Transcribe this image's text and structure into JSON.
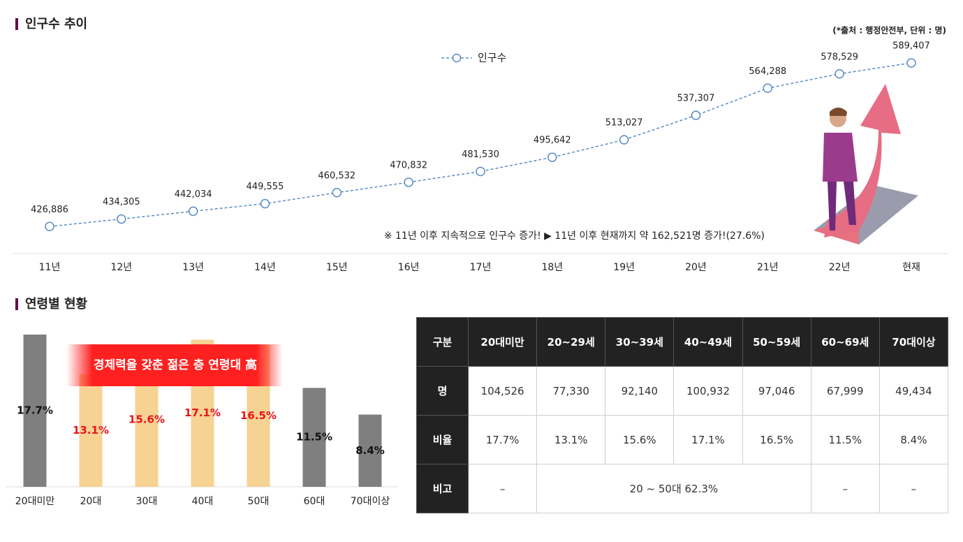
{
  "chart_data": [
    {
      "type": "line",
      "title": "인구수 추이",
      "subtitle": "(*출처 : 행정안전부, 단위 : 명)",
      "annotation": "※ 11년 이후 지속적으로 인구수 증가! ▶ 11년 이후 현재까지 약 162,521명 증가!(27.6%)",
      "categories": [
        "11년",
        "12년",
        "13년",
        "14년",
        "15년",
        "16년",
        "17년",
        "18년",
        "19년",
        "20년",
        "21년",
        "22년",
        "현재"
      ],
      "series": [
        {
          "name": "인구수",
          "color": "#5b8cc4",
          "values": [
            426886,
            434305,
            442034,
            449555,
            460532,
            470832,
            481530,
            495642,
            513027,
            537307,
            564288,
            578529,
            589407
          ],
          "value_labels": [
            "426,886",
            "434,305",
            "442,034",
            "449,555",
            "460,532",
            "470,832",
            "481,530",
            "495,642",
            "513,027",
            "537,307",
            "564,288",
            "578,529",
            "589,407"
          ]
        }
      ],
      "ylim": [
        400000,
        620000
      ],
      "line_style": "dashed"
    },
    {
      "type": "bar",
      "title": "연령별 현황",
      "annotation": "경제력을 갖춘 젊은 층 연령대 高",
      "categories": [
        "20대미만",
        "20대",
        "30대",
        "40대",
        "50대",
        "60대",
        "70대이상"
      ],
      "values": [
        17.7,
        13.1,
        15.6,
        17.1,
        16.5,
        11.5,
        8.4
      ],
      "value_labels": [
        "17.7%",
        "13.1%",
        "15.6%",
        "17.1%",
        "16.5%",
        "11.5%",
        "8.4%"
      ],
      "colors": [
        "#7f7f7f",
        "#f6d293",
        "#f6d293",
        "#f6d293",
        "#f6d293",
        "#7f7f7f",
        "#7f7f7f"
      ],
      "label_colors": [
        "#111111",
        "#e8141b",
        "#e8141b",
        "#e8141b",
        "#e8141b",
        "#111111",
        "#111111"
      ],
      "ylim": [
        0,
        19
      ]
    }
  ],
  "table": {
    "header": [
      "구분",
      "20대미만",
      "20~29세",
      "30~39세",
      "40~49세",
      "50~59세",
      "60~69세",
      "70대이상"
    ],
    "rows": [
      [
        "명",
        "104,526",
        "77,330",
        "92,140",
        "100,932",
        "97,046",
        "67,999",
        "49,434"
      ],
      [
        "비율",
        "17.7%",
        "13.1%",
        "15.6%",
        "17.1%",
        "16.5%",
        "11.5%",
        "8.4%"
      ],
      [
        "비고",
        "–",
        "20 ~ 50대 62.3%",
        "–",
        "–"
      ]
    ]
  }
}
